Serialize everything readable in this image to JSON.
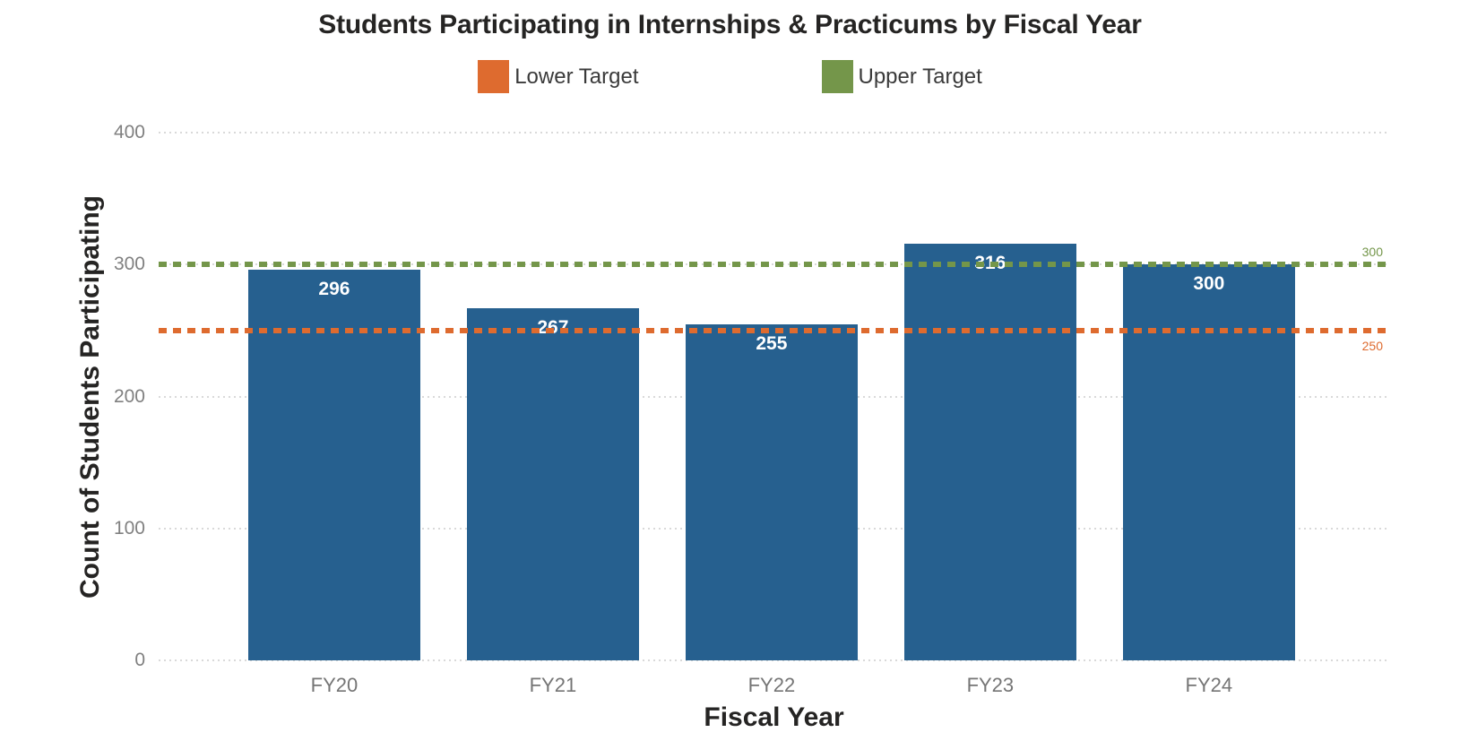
{
  "header": {
    "title": "Students Participating in Internships & Practicums by Fiscal Year"
  },
  "legend": {
    "items": [
      {
        "label": "Lower Target",
        "color": "#DE6B2F"
      },
      {
        "label": "Upper Target",
        "color": "#74964A"
      }
    ]
  },
  "chart_data": {
    "type": "bar",
    "title": "Students Participating in Internships & Practicums by Fiscal Year",
    "categories": [
      "FY20",
      "FY21",
      "FY22",
      "FY23",
      "FY24"
    ],
    "values": [
      296,
      267,
      255,
      316,
      300
    ],
    "bar_labels": [
      "296",
      "267",
      "255",
      "316",
      "300"
    ],
    "xlabel": "Fiscal Year",
    "ylabel": "Count of Students Participating",
    "ylim": [
      0,
      400
    ],
    "yticks": [
      0,
      100,
      200,
      300,
      400
    ],
    "grid": true,
    "legend_position": "top",
    "bar_color": "#26608F",
    "grid_color": "#D9D9D9",
    "tick_color": "#808080",
    "reference_lines": [
      {
        "name": "Lower Target",
        "value": 250,
        "label": "250",
        "color": "#DE6B2F",
        "style": "dotted",
        "label_position": "below-right"
      },
      {
        "name": "Upper Target",
        "value": 300,
        "label": "300",
        "color": "#74964A",
        "style": "dotted",
        "label_position": "above-right"
      }
    ]
  }
}
